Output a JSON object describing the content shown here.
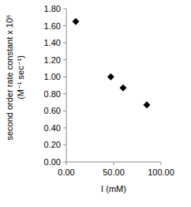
{
  "chart_data": {
    "type": "scatter",
    "x_label": "I (mM)",
    "y_label": [
      "second order rate constant x 10⁶",
      "(M⁻¹ sec⁻¹)"
    ],
    "x": [
      10,
      47,
      60,
      85
    ],
    "values": [
      1.65,
      1.0,
      0.87,
      0.67
    ],
    "color": "#000000",
    "marker": "diamond",
    "grid": false,
    "xlim": [
      0,
      100
    ],
    "xticks": [
      {
        "value": 0,
        "label": "0.00"
      },
      {
        "value": 50,
        "label": "50.00"
      },
      {
        "value": 100,
        "label": "100.00"
      }
    ],
    "ylim": [
      0,
      1.8
    ],
    "yticks": [
      {
        "value": 0,
        "label": "0.00"
      },
      {
        "value": 0.2,
        "label": "0.20"
      },
      {
        "value": 0.4,
        "label": "0.40"
      },
      {
        "value": 0.6,
        "label": "0.60"
      },
      {
        "value": 0.8,
        "label": "0.80"
      },
      {
        "value": 1.0,
        "label": "1.00"
      },
      {
        "value": 1.2,
        "label": "1.20"
      },
      {
        "value": 1.4,
        "label": "1.40"
      },
      {
        "value": 1.6,
        "label": "1.60"
      },
      {
        "value": 1.8,
        "label": "1.80"
      }
    ]
  }
}
